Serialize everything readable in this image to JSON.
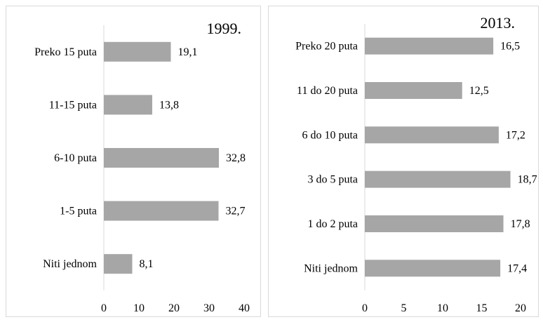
{
  "chart_data": [
    {
      "type": "bar",
      "orientation": "horizontal",
      "title": "1999.",
      "categories": [
        "Preko 15 puta",
        "11-15 puta",
        "6-10 puta",
        "1-5 puta",
        "Niti jednom"
      ],
      "values": [
        19.1,
        13.8,
        32.8,
        32.7,
        8.1
      ],
      "value_labels": [
        "19,1",
        "13,8",
        "32,8",
        "32,7",
        "8,1"
      ],
      "xlim": [
        0,
        40
      ],
      "xticks": [
        "0",
        "10",
        "20",
        "30",
        "40"
      ],
      "bar_color": "#a6a6a6",
      "grid": false
    },
    {
      "type": "bar",
      "orientation": "horizontal",
      "title": "2013.",
      "categories": [
        "Preko 20 puta",
        "11 do 20 puta",
        "6 do 10 puta",
        "3 do 5 puta",
        "1 do 2 puta",
        "Niti jednom"
      ],
      "values": [
        16.5,
        12.5,
        17.2,
        18.7,
        17.8,
        17.4
      ],
      "value_labels": [
        "16,5",
        "12,5",
        "17,2",
        "18,7",
        "17,8",
        "17,4"
      ],
      "xlim": [
        0,
        20
      ],
      "xticks": [
        "0",
        "5",
        "10",
        "15",
        "20"
      ],
      "bar_color": "#a6a6a6",
      "grid": false
    }
  ]
}
